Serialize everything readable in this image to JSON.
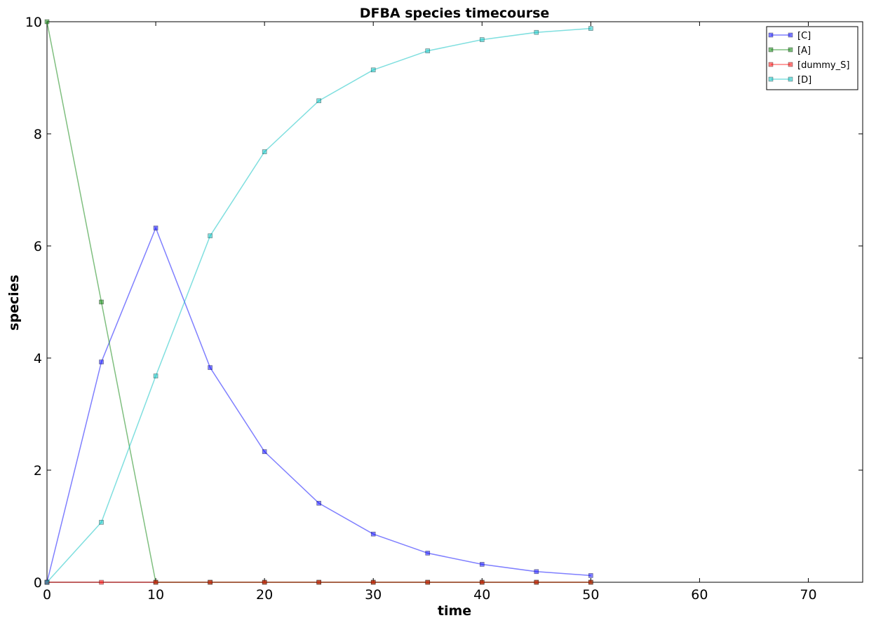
{
  "chart_data": {
    "type": "line",
    "title": "DFBA species timecourse",
    "xlabel": "time",
    "ylabel": "species",
    "xlim": [
      0,
      75
    ],
    "ylim": [
      0,
      10
    ],
    "xticks": [
      0,
      10,
      20,
      30,
      40,
      50,
      60,
      70
    ],
    "yticks": [
      0,
      2,
      4,
      6,
      8,
      10
    ],
    "grid": false,
    "legend_position": "top-right",
    "x": [
      0,
      5,
      10,
      15,
      20,
      25,
      30,
      35,
      40,
      45,
      50
    ],
    "series": [
      {
        "name": "[C]",
        "color": "#0000ff",
        "marker": "square",
        "values": [
          0,
          3.93,
          6.32,
          3.83,
          2.33,
          1.41,
          0.86,
          0.52,
          0.32,
          0.19,
          0.12
        ]
      },
      {
        "name": "[A]",
        "color": "#008000",
        "marker": "square",
        "values": [
          10,
          5.0,
          0,
          0,
          0,
          0,
          0,
          0,
          0,
          0,
          0
        ]
      },
      {
        "name": "[dummy_S]",
        "color": "#ff0000",
        "marker": "square",
        "values": [
          0,
          0,
          0,
          0,
          0,
          0,
          0,
          0,
          0,
          0,
          0
        ]
      },
      {
        "name": "[D]",
        "color": "#00bfbf",
        "marker": "square",
        "values": [
          0,
          1.07,
          3.68,
          6.18,
          7.68,
          8.59,
          9.14,
          9.48,
          9.68,
          9.81,
          9.88
        ]
      }
    ]
  }
}
